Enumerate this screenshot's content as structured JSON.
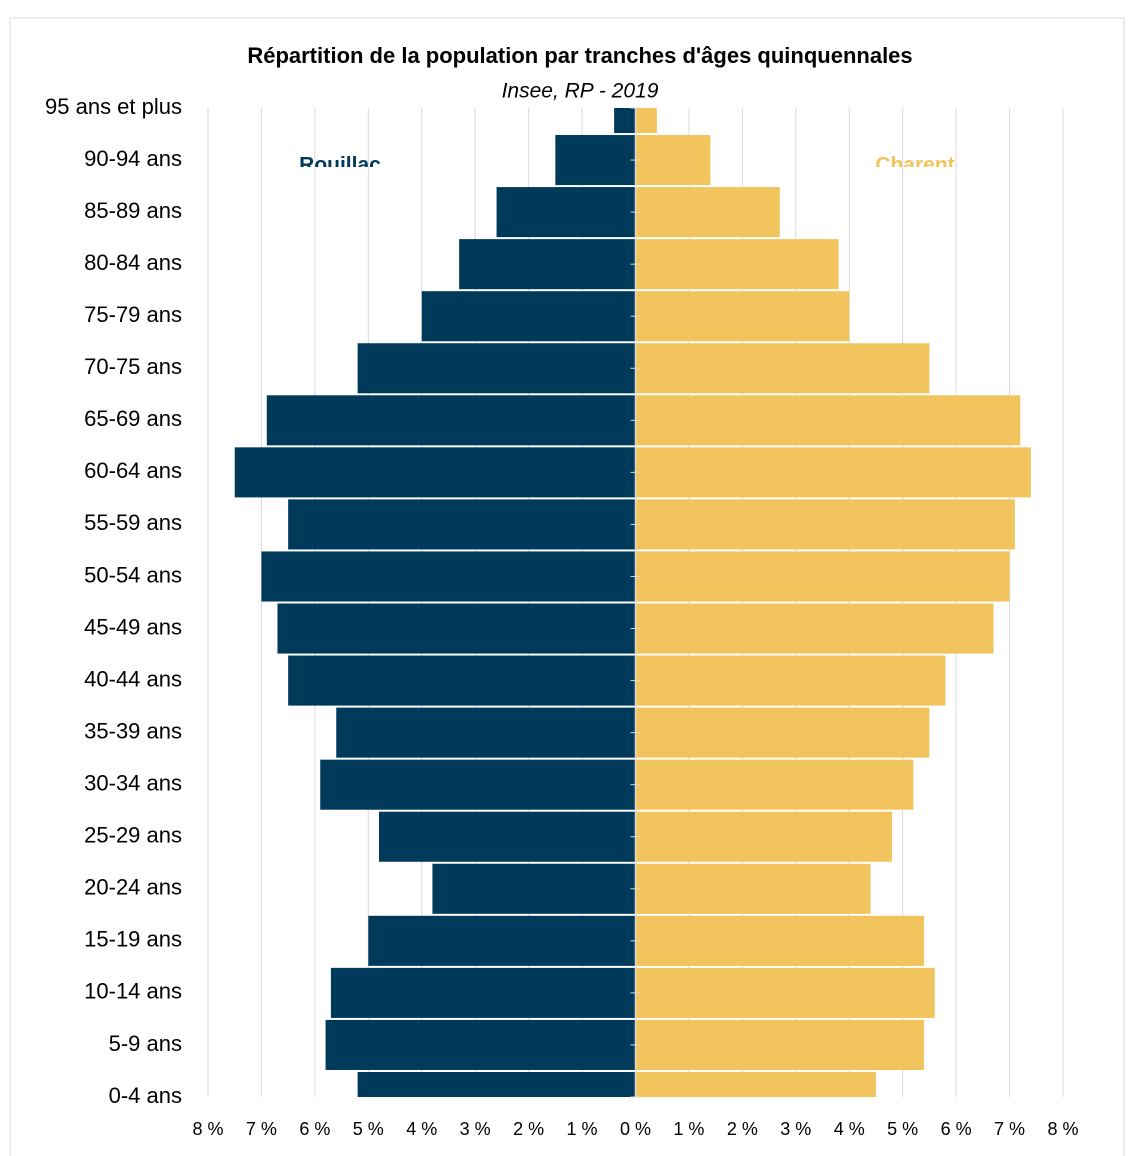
{
  "chart_data": {
    "type": "pyramid",
    "title": "Répartition de la population par tranches d'âges quinquennales",
    "subtitle": "Insee, RP - 2019",
    "categories": [
      "95 ans et plus",
      "90-94 ans",
      "85-89 ans",
      "80-84 ans",
      "75-79 ans",
      "70-75 ans",
      "65-69 ans",
      "60-64 ans",
      "55-59 ans",
      "50-54 ans",
      "45-49 ans",
      "40-44 ans",
      "35-39 ans",
      "30-34 ans",
      "25-29 ans",
      "20-24 ans",
      "15-19 ans",
      "10-14 ans",
      "5-9 ans",
      "0-4 ans"
    ],
    "series": [
      {
        "name": "Rouillac",
        "color": "#003a5a",
        "values": [
          -0.4,
          -1.5,
          -2.6,
          -3.3,
          -4.0,
          -5.2,
          -6.9,
          -7.5,
          -6.5,
          -7.0,
          -6.7,
          -6.5,
          -5.6,
          -5.9,
          -4.8,
          -3.8,
          -5.0,
          -5.7,
          -5.8,
          -5.2
        ]
      },
      {
        "name": "Charent",
        "color": "#f2c45e",
        "values": [
          0.4,
          1.4,
          2.7,
          3.8,
          4.0,
          5.5,
          7.2,
          7.4,
          7.1,
          7.0,
          6.7,
          5.8,
          5.5,
          5.2,
          4.8,
          4.4,
          5.4,
          5.6,
          5.4,
          4.5
        ]
      }
    ],
    "xlim": [
      -8,
      8
    ],
    "xticks": [
      {
        "value": -8,
        "label": "8 %"
      },
      {
        "value": -7,
        "label": "7 %"
      },
      {
        "value": -6,
        "label": "6 %"
      },
      {
        "value": -5,
        "label": "5 %"
      },
      {
        "value": -4,
        "label": "4 %"
      },
      {
        "value": -3,
        "label": "3 %"
      },
      {
        "value": -2,
        "label": "2 %"
      },
      {
        "value": -1,
        "label": "1 %"
      },
      {
        "value": 0,
        "label": "0 %"
      },
      {
        "value": 1,
        "label": "1 %"
      },
      {
        "value": 2,
        "label": "2 %"
      },
      {
        "value": 3,
        "label": "3 %"
      },
      {
        "value": 4,
        "label": "4 %"
      },
      {
        "value": 5,
        "label": "5 %"
      },
      {
        "value": 6,
        "label": "6 %"
      },
      {
        "value": 7,
        "label": "7 %"
      },
      {
        "value": 8,
        "label": "8 %"
      }
    ],
    "grid": true
  }
}
